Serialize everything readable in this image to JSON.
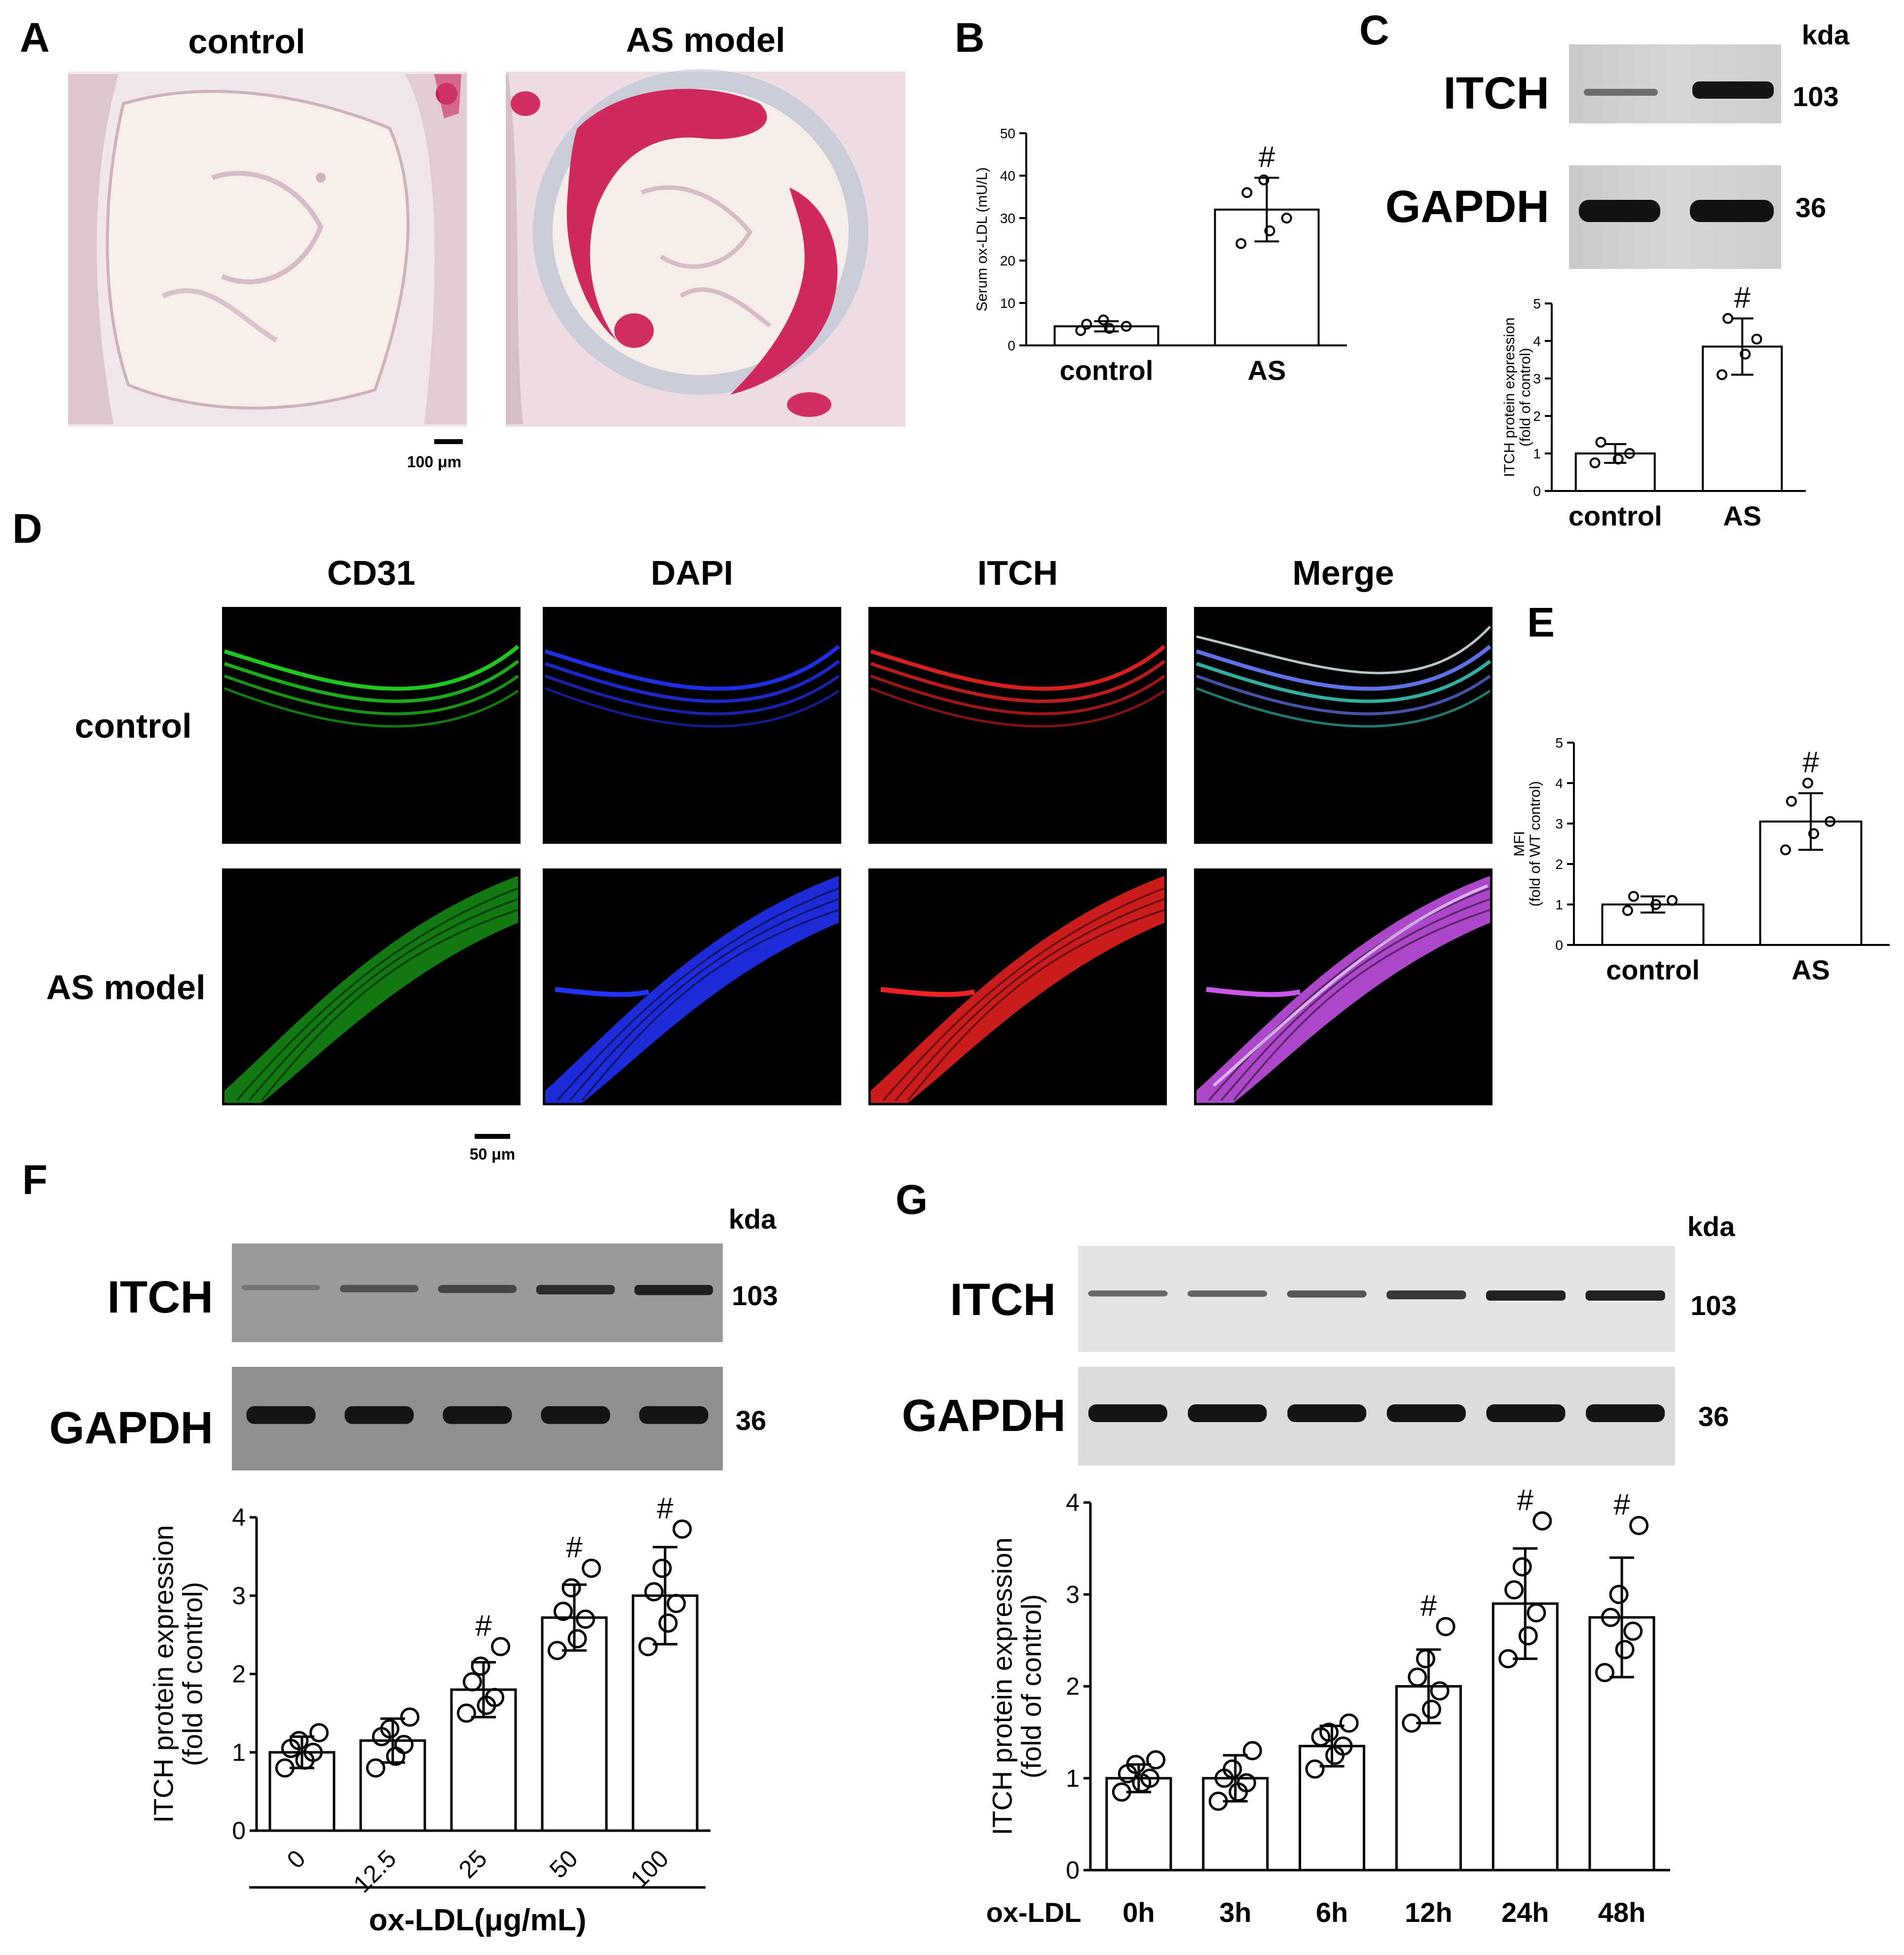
{
  "panel_letters": {
    "a": "A",
    "b": "B",
    "c": "C",
    "d": "D",
    "e": "E",
    "f": "F",
    "g": "G"
  },
  "panel_a": {
    "left_title": "control",
    "right_title": "AS model",
    "scale_bar": "100 μm"
  },
  "panel_d": {
    "columns": [
      "CD31",
      "DAPI",
      "ITCH",
      "Merge"
    ],
    "rows": [
      "control",
      "AS model"
    ],
    "scale_bar": "50 μm",
    "channel_colors": [
      "#22dd22",
      "#2233ff",
      "#ee2222",
      "#cc55ee"
    ]
  },
  "blots": {
    "c": {
      "top": "ITCH",
      "bottom": "GAPDH",
      "kda": "kda",
      "top_kda": "103",
      "bottom_kda": "36"
    },
    "f": {
      "top": "ITCH",
      "bottom": "GAPDH",
      "kda": "kda",
      "top_kda": "103",
      "bottom_kda": "36"
    },
    "g": {
      "top": "ITCH",
      "bottom": "GAPDH",
      "kda": "kda",
      "top_kda": "103",
      "bottom_kda": "36"
    }
  },
  "significance_mark": "#",
  "chart_data": [
    {
      "id": "B",
      "type": "bar",
      "categories": [
        "control",
        "AS"
      ],
      "values": [
        4.5,
        32
      ],
      "errors": [
        1.2,
        7.5
      ],
      "points": [
        [
          3.5,
          4.0,
          4.5,
          5.0,
          6.0
        ],
        [
          24,
          27,
          30,
          36,
          39
        ]
      ],
      "significant": [
        false,
        true
      ],
      "ylabel": "Serum ox-LDL (mU/L)",
      "xlabel": "",
      "ylim": [
        0,
        50
      ],
      "yticks": [
        0,
        10,
        20,
        30,
        40,
        50
      ]
    },
    {
      "id": "C",
      "type": "bar",
      "categories": [
        "control",
        "AS"
      ],
      "values": [
        1.0,
        3.85
      ],
      "errors": [
        0.25,
        0.75
      ],
      "points": [
        [
          0.75,
          0.85,
          1.0,
          1.3
        ],
        [
          3.1,
          3.65,
          4.05,
          4.6
        ]
      ],
      "significant": [
        false,
        true
      ],
      "ylabel": "ITCH protein expression\n(fold of control)",
      "xlabel": "",
      "ylim": [
        0,
        5
      ],
      "yticks": [
        0,
        1,
        2,
        3,
        4,
        5
      ]
    },
    {
      "id": "E",
      "type": "bar",
      "categories": [
        "control",
        "AS"
      ],
      "values": [
        1.0,
        3.05
      ],
      "errors": [
        0.2,
        0.7
      ],
      "points": [
        [
          0.85,
          1.0,
          1.1,
          1.2
        ],
        [
          2.35,
          2.75,
          3.05,
          3.55,
          4.0
        ]
      ],
      "significant": [
        false,
        true
      ],
      "ylabel": "MFI\n(fold of WT control)",
      "xlabel": "",
      "ylim": [
        0,
        5
      ],
      "yticks": [
        0,
        1,
        2,
        3,
        4,
        5
      ]
    },
    {
      "id": "F",
      "type": "bar",
      "categories": [
        "0",
        "12.5",
        "25",
        "50",
        "100"
      ],
      "values": [
        1.0,
        1.15,
        1.8,
        2.72,
        3.0
      ],
      "errors": [
        0.2,
        0.28,
        0.35,
        0.42,
        0.62
      ],
      "points": [
        [
          0.8,
          0.9,
          1.0,
          1.05,
          1.15,
          1.25
        ],
        [
          0.8,
          0.95,
          1.1,
          1.2,
          1.3,
          1.45
        ],
        [
          1.5,
          1.6,
          1.7,
          1.9,
          2.1,
          2.35
        ],
        [
          2.3,
          2.45,
          2.7,
          2.8,
          3.1,
          3.35
        ],
        [
          2.35,
          2.65,
          2.9,
          3.05,
          3.35,
          3.85
        ]
      ],
      "significant": [
        false,
        false,
        true,
        true,
        true
      ],
      "ylabel": "ITCH protein expression\n(fold of control)",
      "xlabel": "ox-LDL(μg/mL)",
      "ylim": [
        0,
        4
      ],
      "yticks": [
        0,
        1,
        2,
        3,
        4
      ]
    },
    {
      "id": "G",
      "type": "bar",
      "categories": [
        "0h",
        "3h",
        "6h",
        "12h",
        "24h",
        "48h"
      ],
      "values": [
        1.0,
        1.0,
        1.35,
        2.0,
        2.9,
        2.75
      ],
      "errors": [
        0.15,
        0.25,
        0.22,
        0.4,
        0.6,
        0.65
      ],
      "points": [
        [
          0.85,
          0.95,
          1.0,
          1.05,
          1.15,
          1.2
        ],
        [
          0.75,
          0.85,
          0.95,
          1.0,
          1.1,
          1.3
        ],
        [
          1.1,
          1.25,
          1.35,
          1.45,
          1.5,
          1.6
        ],
        [
          1.6,
          1.75,
          1.95,
          2.1,
          2.3,
          2.65
        ],
        [
          2.3,
          2.55,
          2.8,
          3.05,
          3.3,
          3.8
        ],
        [
          2.15,
          2.4,
          2.6,
          2.75,
          3.0,
          3.75
        ]
      ],
      "significant": [
        false,
        false,
        false,
        true,
        true,
        true
      ],
      "ylabel": "ITCH protein expression\n(fold of control)",
      "xlabel": "ox-LDL",
      "ylim": [
        0,
        4
      ],
      "yticks": [
        0,
        1,
        2,
        3,
        4
      ]
    }
  ]
}
